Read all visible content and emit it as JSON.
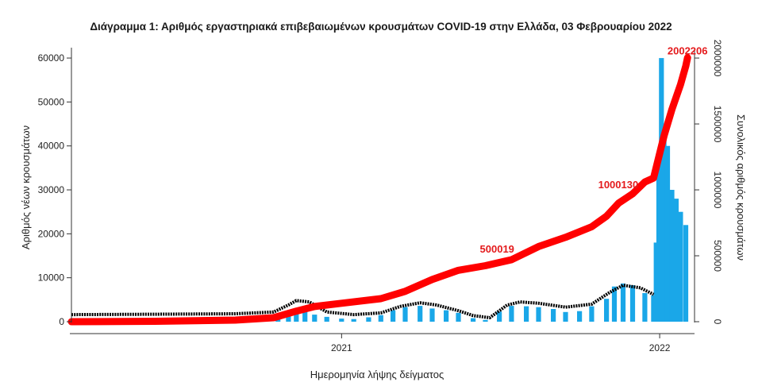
{
  "chart_data": {
    "type": "bar",
    "title": "Διάγραμμα 1: Αριθμός εργαστηριακά επιβεβαιωμένων κρουσμάτων COVID-19 στην Ελλάδα, 03 Φεβρουαρίου 2022",
    "xlabel": "Ημερομηνία λήψης δείγματος",
    "ylabel": "Αριθμός νέων κρουσμάτων",
    "y2label": "Συνολικός αριθμός κρουσμάτων",
    "ylim": [
      0,
      62000
    ],
    "y2lim": [
      0,
      2066667
    ],
    "yticks": [
      0,
      10000,
      20000,
      30000,
      40000,
      50000,
      60000
    ],
    "yticklabels": [
      "0",
      "10000",
      "20000",
      "30000",
      "40000",
      "50000",
      "60000"
    ],
    "y2ticks": [
      0,
      500000,
      1000000,
      1500000,
      2000000
    ],
    "y2ticklabels": [
      "0",
      "500000",
      "1000000",
      "1500000",
      "2000000"
    ],
    "xticks": [
      "2021-01-01",
      "2022-01-01"
    ],
    "xticklabels": [
      "2021",
      "2022"
    ],
    "xlim": [
      "2020-02-26",
      "2022-02-10"
    ],
    "grid": false,
    "colors": {
      "bars": "#1aa7e8",
      "cumulative": "#ff0000",
      "moving_average": "#000000",
      "annotation": "#e41a1c"
    },
    "series": [
      {
        "kind": "bar",
        "unit": "daily_new_cases",
        "x": [
          "2020-10-20",
          "2020-11-01",
          "2020-11-10",
          "2020-11-20",
          "2020-12-01",
          "2020-12-15",
          "2021-01-01",
          "2021-01-15",
          "2021-02-01",
          "2021-02-15",
          "2021-03-01",
          "2021-03-15",
          "2021-04-01",
          "2021-04-15",
          "2021-05-01",
          "2021-05-15",
          "2021-06-01",
          "2021-06-15",
          "2021-07-01",
          "2021-07-15",
          "2021-08-01",
          "2021-08-15",
          "2021-09-01",
          "2021-09-15",
          "2021-10-01",
          "2021-10-15",
          "2021-11-01",
          "2021-11-10",
          "2021-11-20",
          "2021-12-01",
          "2021-12-15",
          "2021-12-25",
          "2021-12-28",
          "2021-12-31",
          "2022-01-03",
          "2022-01-06",
          "2022-01-10",
          "2022-01-15",
          "2022-01-20",
          "2022-01-25",
          "2022-01-31"
        ],
        "values": [
          800,
          2200,
          3000,
          2600,
          1600,
          1100,
          700,
          600,
          1000,
          1500,
          2600,
          3300,
          3600,
          3000,
          2600,
          2000,
          800,
          400,
          2300,
          3600,
          3500,
          3300,
          2900,
          2200,
          2400,
          3500,
          5200,
          8000,
          8700,
          8300,
          6500,
          6000,
          18000,
          35000,
          60000,
          42000,
          40000,
          30000,
          28000,
          25000,
          22000
        ]
      },
      {
        "kind": "line",
        "unit": "daily_moving_average",
        "x": [
          "2020-02-26",
          "2020-06-01",
          "2020-09-01",
          "2020-10-15",
          "2020-11-01",
          "2020-11-10",
          "2020-11-25",
          "2020-12-15",
          "2021-01-15",
          "2021-02-15",
          "2021-03-10",
          "2021-04-01",
          "2021-04-20",
          "2021-05-15",
          "2021-06-01",
          "2021-06-20",
          "2021-07-10",
          "2021-07-25",
          "2021-08-15",
          "2021-09-15",
          "2021-10-15",
          "2021-11-05",
          "2021-11-20",
          "2021-12-10",
          "2021-12-25"
        ],
        "values": [
          1600,
          1700,
          1800,
          2200,
          3800,
          4800,
          4500,
          2200,
          1600,
          2000,
          3500,
          4300,
          3800,
          2500,
          1400,
          900,
          3800,
          4500,
          4200,
          3300,
          4000,
          6700,
          8300,
          7700,
          6200
        ]
      },
      {
        "kind": "line",
        "unit": "cumulative_cases",
        "x": [
          "2020-02-26",
          "2020-06-01",
          "2020-09-01",
          "2020-10-15",
          "2020-11-10",
          "2020-12-01",
          "2021-01-01",
          "2021-02-15",
          "2021-03-15",
          "2021-04-15",
          "2021-05-15",
          "2021-06-15",
          "2021-07-15",
          "2021-08-15",
          "2021-09-15",
          "2021-10-15",
          "2021-11-01",
          "2021-11-15",
          "2021-12-01",
          "2021-12-15",
          "2021-12-25",
          "2021-12-31",
          "2022-01-06",
          "2022-01-15",
          "2022-01-25",
          "2022-01-31",
          "2022-02-02"
        ],
        "values": [
          0,
          3000,
          12000,
          30000,
          80000,
          115000,
          140000,
          175000,
          230000,
          320000,
          390000,
          425000,
          470000,
          570000,
          640000,
          720000,
          800000,
          900000,
          970000,
          1060000,
          1090000,
          1250000,
          1410000,
          1610000,
          1800000,
          1940000,
          2002206
        ]
      }
    ],
    "annotations": [
      {
        "text": "500019",
        "x": "2021-07-20",
        "y2": 500019
      },
      {
        "text": "1000130",
        "x": "2021-12-13",
        "y2": 1000130
      },
      {
        "text": "2002206",
        "x": "2022-02-02",
        "y2": 2002206
      }
    ]
  }
}
